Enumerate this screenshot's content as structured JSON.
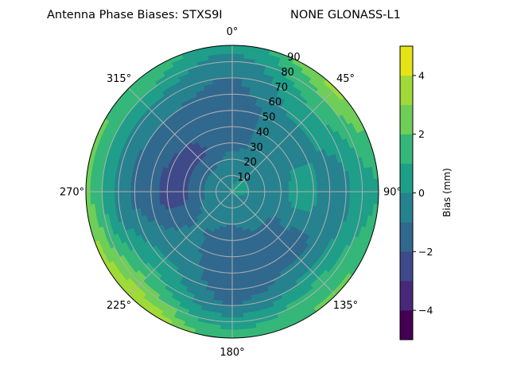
{
  "chart_data": {
    "type": "heatmap",
    "projection": "polar",
    "title": "Antenna Phase Biases: STXS9I",
    "subtitle": "NONE GLONASS-L1",
    "theta_direction": "clockwise",
    "theta_zero": "north",
    "theta_tick_labels": [
      "0°",
      "45°",
      "90°",
      "135°",
      "180°",
      "225°",
      "270°",
      "315°"
    ],
    "r_tick_labels": [
      "10",
      "20",
      "30",
      "40",
      "50",
      "60",
      "70",
      "80",
      "90"
    ],
    "rlim": [
      0,
      90
    ],
    "grid": true,
    "colorbar": {
      "label": "Bias (mm)",
      "range": [
        -5,
        5
      ],
      "tick_labels": [
        "4",
        "2",
        "0",
        "−2",
        "−4"
      ],
      "tick_values": [
        4,
        2,
        0,
        -2,
        -4
      ],
      "levels": [
        -5,
        -4,
        -3,
        -2,
        -1,
        0,
        1,
        2,
        3,
        4,
        5
      ],
      "colors": [
        "#440154",
        "#482878",
        "#3e4a89",
        "#31688e",
        "#26828e",
        "#1f9e89",
        "#35b779",
        "#6ece58",
        "#a0da39",
        "#e5e419"
      ],
      "colormap": "viridis"
    },
    "azimuths_deg": [
      0,
      45,
      90,
      135,
      180,
      225,
      270,
      315
    ],
    "zenith_deg": [
      0,
      10,
      20,
      30,
      40,
      50,
      60,
      70,
      80,
      90
    ],
    "bias_mm": [
      [
        0.3,
        -0.5,
        -0.8,
        -1.2,
        -1.5,
        -1.5,
        -1.3,
        -1.0,
        -0.5,
        0.5
      ],
      [
        0.5,
        0.0,
        -0.5,
        -0.8,
        -0.5,
        -0.5,
        0.3,
        1.0,
        2.0,
        3.2
      ],
      [
        0.5,
        0.0,
        -0.3,
        -0.5,
        0.5,
        0.3,
        -0.5,
        -0.3,
        0.5,
        1.0
      ],
      [
        0.3,
        -0.5,
        -0.5,
        -1.2,
        -1.2,
        -1.5,
        -0.8,
        0.3,
        1.5,
        2.2
      ],
      [
        0.0,
        -0.5,
        -1.0,
        -1.2,
        -1.5,
        -1.5,
        -1.5,
        -1.0,
        0.5,
        1.5
      ],
      [
        0.0,
        -0.5,
        -0.8,
        -1.0,
        -0.8,
        -0.5,
        0.2,
        1.2,
        2.5,
        4.0
      ],
      [
        0.0,
        -0.5,
        -1.2,
        -2.2,
        -2.5,
        -1.5,
        -1.2,
        -0.5,
        1.0,
        2.5
      ],
      [
        0.0,
        -0.5,
        -1.2,
        -2.2,
        -2.0,
        -1.5,
        -1.0,
        -0.5,
        1.0,
        2.0
      ]
    ]
  }
}
